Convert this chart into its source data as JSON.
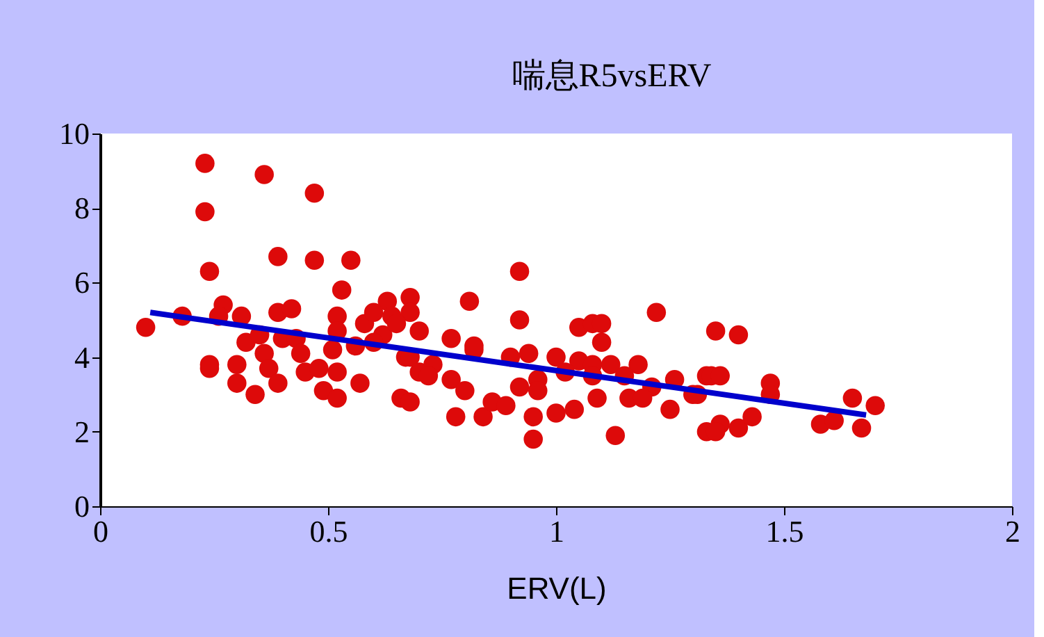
{
  "chart_data": {
    "type": "scatter",
    "title": "喘息R5vsERV",
    "xlabel": "ERV(L)",
    "xlim": [
      0,
      2
    ],
    "xticks": [
      0,
      0.5,
      1,
      1.5,
      2
    ],
    "ylim": [
      0,
      10
    ],
    "yticks": [
      0,
      2,
      4,
      6,
      8,
      10
    ],
    "grid": false,
    "series": [
      {
        "marker": "circle",
        "color": "#dd0a0a",
        "x": [
          0.1,
          0.18,
          0.23,
          0.23,
          0.24,
          0.27,
          0.26,
          0.31,
          0.24,
          0.24,
          0.36,
          0.47,
          0.39,
          0.47,
          0.55,
          0.53,
          0.39,
          0.42,
          0.52,
          0.52,
          0.51,
          0.56,
          0.58,
          0.32,
          0.35,
          0.36,
          0.4,
          0.43,
          0.44,
          0.3,
          0.3,
          0.34,
          0.37,
          0.39,
          0.45,
          0.48,
          0.52,
          0.49,
          0.52,
          0.57,
          0.66,
          0.68,
          0.63,
          0.68,
          0.6,
          0.64,
          0.68,
          0.62,
          0.65,
          0.7,
          0.6,
          0.67,
          0.68,
          0.7,
          0.92,
          0.81,
          0.92,
          1.22,
          0.77,
          0.82,
          0.82,
          0.9,
          0.94,
          1.0,
          1.05,
          1.08,
          1.1,
          1.1,
          1.05,
          1.08,
          1.12,
          1.18,
          1.02,
          1.08,
          1.15,
          1.21,
          1.16,
          1.19,
          1.26,
          1.3,
          1.33,
          0.73,
          0.72,
          0.77,
          0.8,
          0.78,
          0.84,
          0.86,
          0.89,
          0.92,
          0.96,
          0.96,
          0.95,
          0.95,
          1.0,
          1.04,
          1.09,
          1.13,
          1.25,
          1.33,
          1.35,
          1.4,
          1.34,
          1.36,
          1.31,
          1.47,
          1.47,
          1.36,
          1.35,
          1.4,
          1.43,
          1.58,
          1.61,
          1.65,
          1.67,
          1.7
        ],
        "values": [
          4.8,
          5.1,
          9.2,
          7.9,
          6.3,
          5.4,
          5.1,
          5.1,
          3.8,
          3.7,
          8.9,
          8.4,
          6.7,
          6.6,
          6.6,
          5.8,
          5.2,
          5.3,
          5.1,
          4.7,
          4.2,
          4.3,
          4.9,
          4.4,
          4.6,
          4.1,
          4.5,
          4.5,
          4.1,
          3.8,
          3.3,
          3.0,
          3.7,
          3.3,
          3.6,
          3.7,
          3.6,
          3.1,
          2.9,
          3.3,
          2.9,
          2.8,
          5.5,
          5.6,
          5.2,
          5.1,
          5.2,
          4.6,
          4.9,
          4.7,
          4.4,
          4.0,
          4.0,
          3.6,
          6.3,
          5.5,
          5.0,
          5.2,
          4.5,
          4.2,
          4.3,
          4.0,
          4.1,
          4.0,
          4.8,
          4.9,
          4.9,
          4.4,
          3.9,
          3.8,
          3.8,
          3.8,
          3.6,
          3.5,
          3.5,
          3.2,
          2.9,
          2.9,
          3.4,
          3.0,
          3.5,
          3.8,
          3.5,
          3.4,
          3.1,
          2.4,
          2.4,
          2.8,
          2.7,
          3.2,
          3.4,
          3.1,
          2.4,
          1.8,
          2.5,
          2.6,
          2.9,
          1.9,
          2.6,
          2.0,
          4.7,
          4.6,
          3.5,
          3.5,
          3.0,
          3.3,
          3.0,
          2.2,
          2.0,
          2.1,
          2.4,
          2.2,
          2.3,
          2.9,
          2.1,
          2.7
        ]
      },
      {
        "type": "line",
        "marker": "none",
        "line_style": "solid",
        "color": "#0000cc",
        "x": [
          0.11,
          1.68
        ],
        "values": [
          5.2,
          2.45
        ]
      }
    ]
  }
}
